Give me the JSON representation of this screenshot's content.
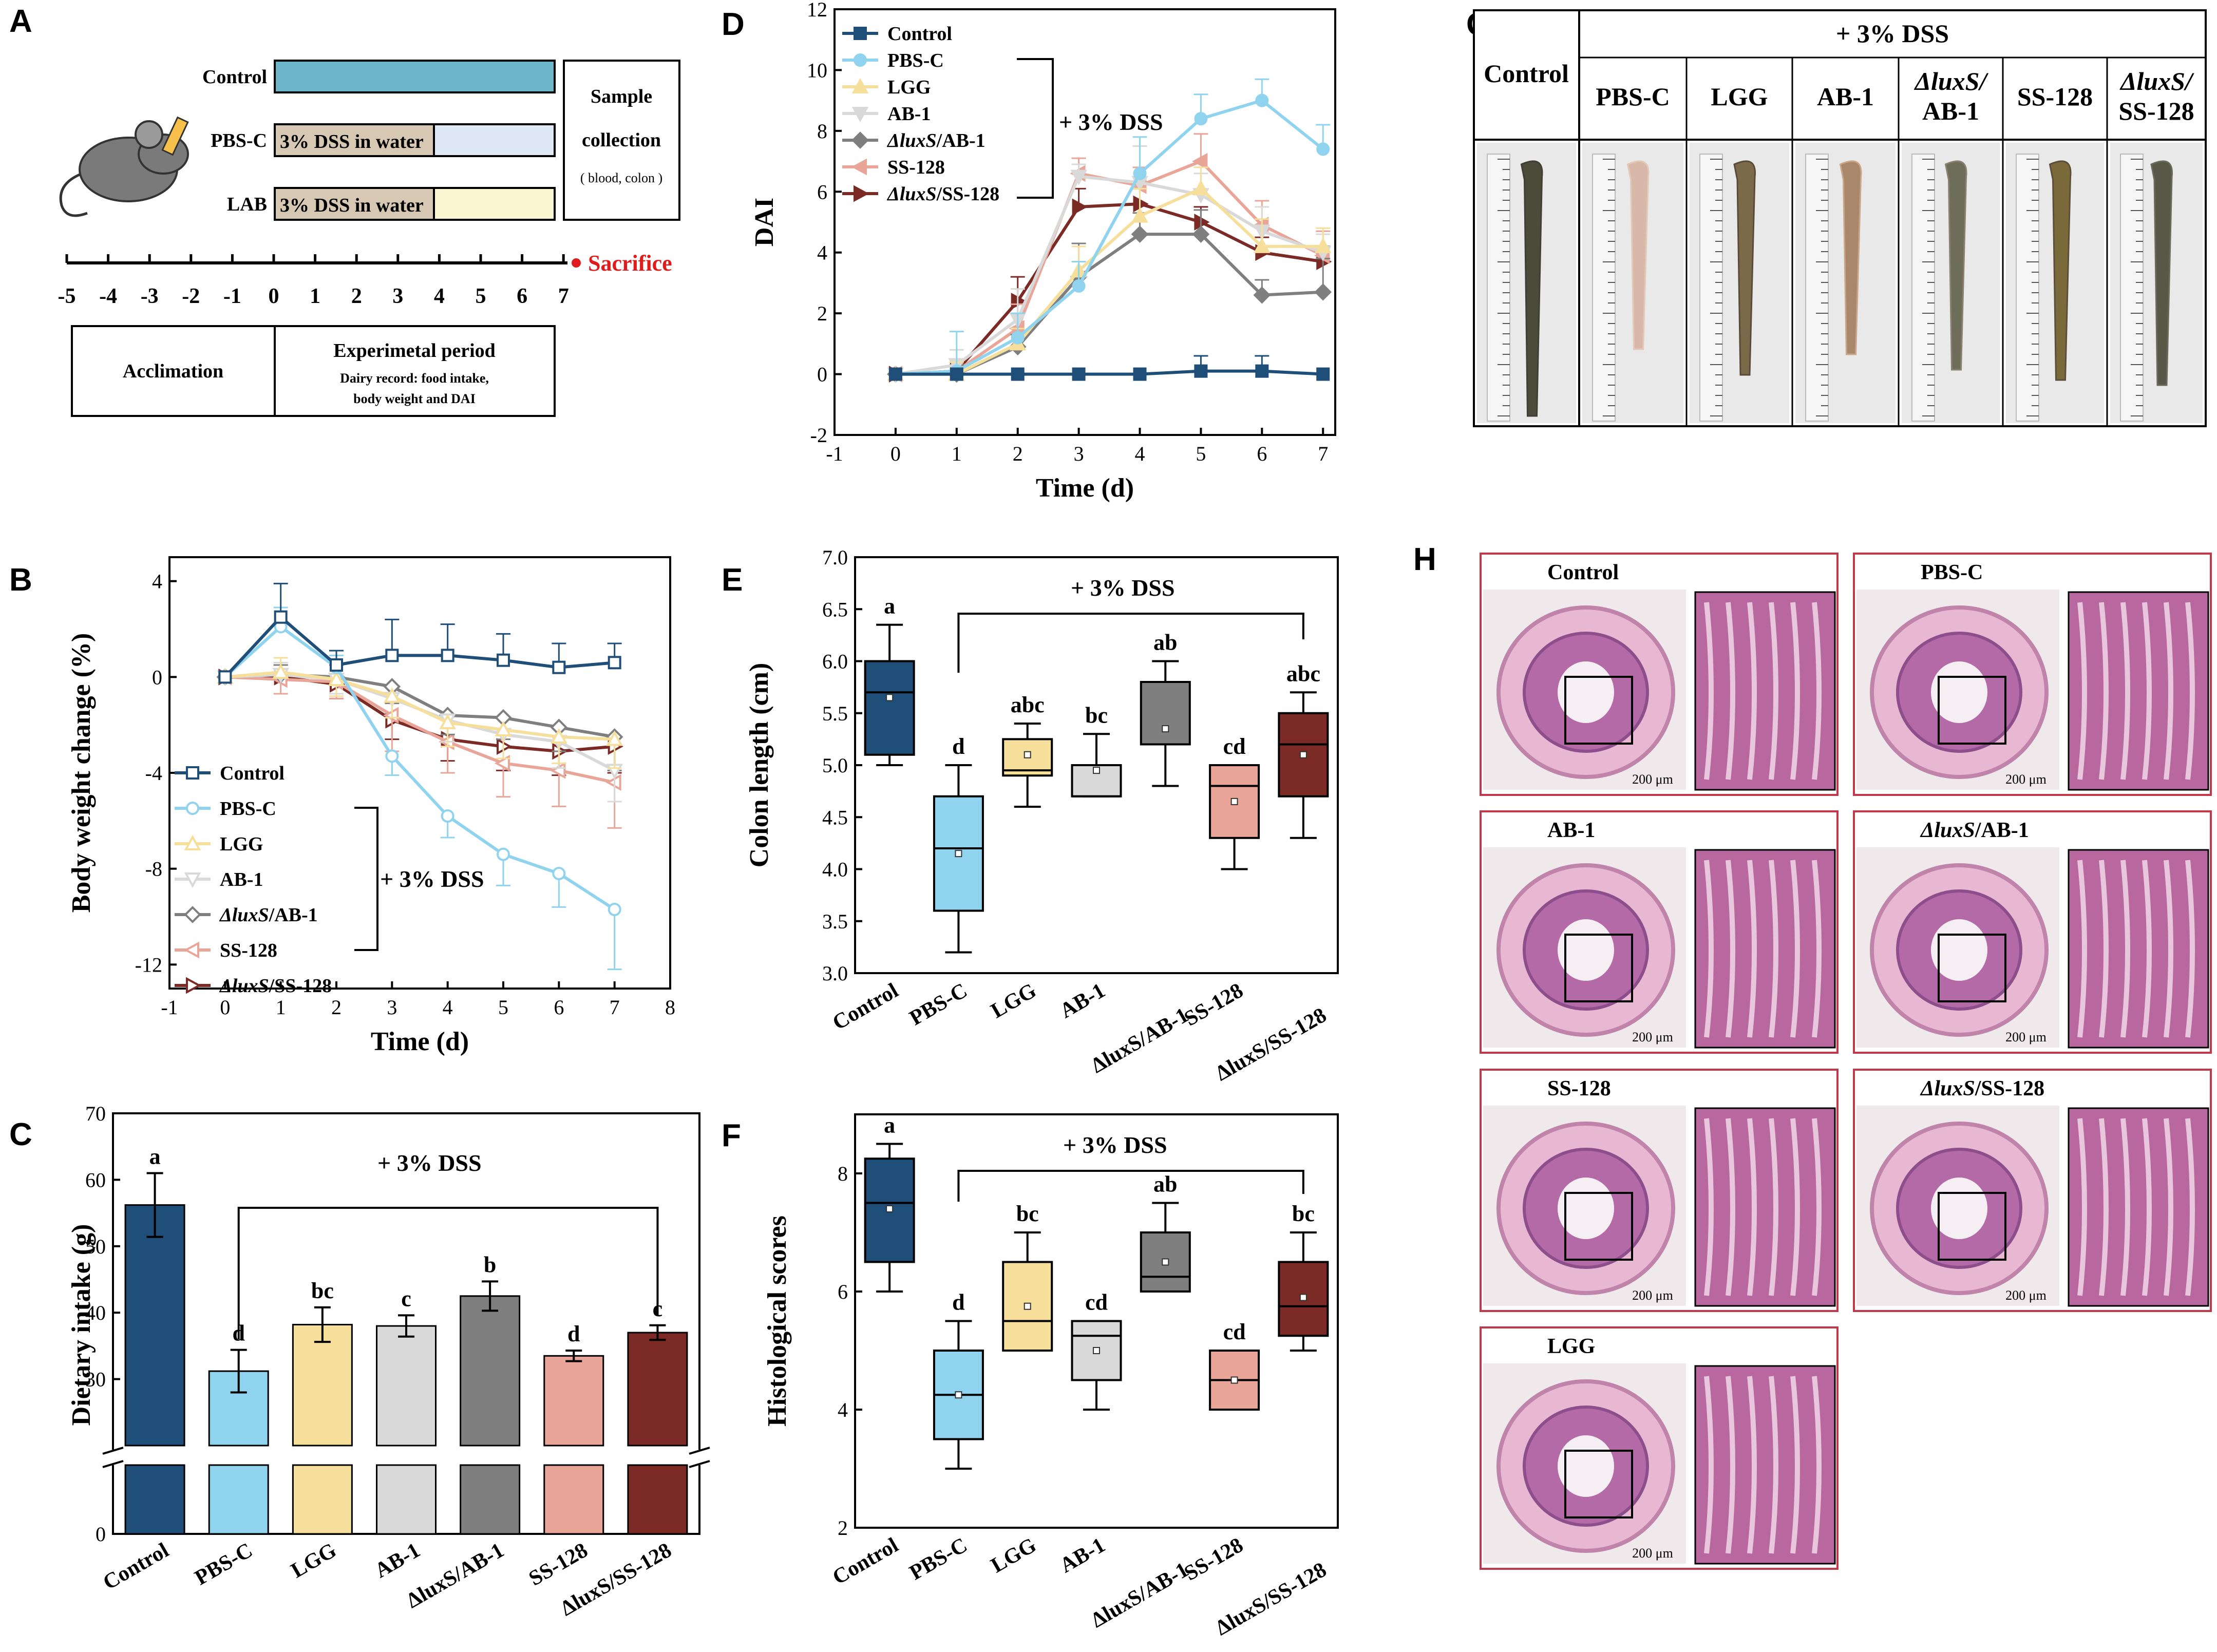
{
  "panels": {
    "A": {
      "letter": "A",
      "groups": [
        "Control",
        "PBS-C",
        "LAB"
      ],
      "bar_text": "3% DSS in water",
      "sample_box": [
        "Sample",
        "collection",
        "( blood, colon )"
      ],
      "sacrifice": "Sacrifice",
      "days": [
        "-5",
        "-4",
        "-3",
        "-2",
        "-1",
        "0",
        "1",
        "2",
        "3",
        "4",
        "5",
        "6",
        "7"
      ],
      "acclimation": "Acclimation",
      "experimental": "Experimetal period",
      "record_line1": "Dairy record: food intake,",
      "record_line2": "body weight and DAI",
      "colors": {
        "control_bar": "#6bb6c8",
        "pbs_bar": "#dfe9f5",
        "lab_bar": "#fbf6d2",
        "dss_part": "#d7c8b4"
      }
    },
    "G": {
      "letter": "G",
      "control": "Control",
      "dss_header": "+ 3% DSS",
      "columns": [
        "PBS-C",
        "LGG",
        "AB-1",
        "ΔluxS/\nAB-1",
        "SS-128",
        "ΔluxS/\nSS-128"
      ]
    },
    "H": {
      "letter": "H",
      "sections": [
        "Control",
        "PBS-C",
        "AB-1",
        "ΔluxS/AB-1",
        "SS-128",
        "ΔluxS/SS-128",
        "LGG"
      ],
      "scale": "200 μm",
      "border_color": "#c0394b"
    }
  },
  "series_colors": {
    "Control": "#1f4e79",
    "PBS-C": "#8fd3ee",
    "LGG": "#f5df9a",
    "AB-1": "#d9d9d9",
    "ΔluxS/AB-1": "#7f7f7f",
    "SS-128": "#e8a598",
    "ΔluxS/SS-128": "#7b2a26"
  },
  "chart_data": [
    {
      "id": "B",
      "letter": "B",
      "type": "line",
      "xlabel": "Time (d)",
      "ylabel": "Body weight change (%)",
      "xlim": [
        -1,
        8
      ],
      "ylim": [
        -13,
        5
      ],
      "xticks": [
        -1,
        0,
        1,
        2,
        3,
        4,
        5,
        6,
        7,
        8
      ],
      "yticks": [
        4,
        0,
        -4,
        -8,
        -12
      ],
      "dss_label": "+ 3% DSS",
      "x": [
        0,
        1,
        2,
        3,
        4,
        5,
        6,
        7
      ],
      "series": [
        {
          "name": "Control",
          "values": [
            0,
            2.5,
            0.5,
            0.9,
            0.9,
            0.7,
            0.4,
            0.6
          ],
          "err": [
            0,
            1.4,
            0.6,
            1.5,
            1.3,
            1.1,
            1.0,
            0.8
          ]
        },
        {
          "name": "PBS-C",
          "values": [
            0,
            2.1,
            0.4,
            -3.3,
            -5.8,
            -7.4,
            -8.2,
            -9.7
          ],
          "err": [
            0,
            0.8,
            0.5,
            0.8,
            0.9,
            1.3,
            1.4,
            2.5
          ]
        },
        {
          "name": "LGG",
          "values": [
            0,
            0.2,
            -0.1,
            -0.8,
            -1.9,
            -2.2,
            -2.5,
            -2.6
          ],
          "err": [
            0,
            0.6,
            0.7,
            0.9,
            1.0,
            1.2,
            1.1,
            1.2
          ]
        },
        {
          "name": "AB-1",
          "values": [
            0,
            0.1,
            -0.1,
            -0.9,
            -1.8,
            -2.4,
            -2.7,
            -3.9
          ],
          "err": [
            0,
            0.5,
            0.6,
            0.8,
            0.9,
            1.0,
            1.1,
            1.3
          ]
        },
        {
          "name": "ΔluxS/AB-1",
          "values": [
            0,
            0.1,
            0.0,
            -0.4,
            -1.6,
            -1.7,
            -2.1,
            -2.5
          ],
          "err": [
            0,
            0.4,
            0.5,
            0.7,
            0.8,
            0.9,
            1.0,
            1.4
          ]
        },
        {
          "name": "SS-128",
          "values": [
            0,
            -0.1,
            -0.2,
            -1.6,
            -2.7,
            -3.6,
            -3.9,
            -4.4
          ],
          "err": [
            0,
            0.6,
            0.7,
            1.5,
            1.3,
            1.4,
            1.5,
            1.9
          ]
        },
        {
          "name": "ΔluxS/SS-128",
          "values": [
            0,
            0.0,
            -0.3,
            -1.8,
            -2.6,
            -2.9,
            -3.1,
            -2.9
          ],
          "err": [
            0,
            0.5,
            0.6,
            0.8,
            0.9,
            1.0,
            1.0,
            1.1
          ]
        }
      ]
    },
    {
      "id": "C",
      "letter": "C",
      "type": "bar",
      "ylabel": "Dietary intake (g)",
      "ylim": [
        20,
        70
      ],
      "yticks": [
        30,
        40,
        50,
        60,
        70
      ],
      "axis_zero": "0",
      "dss_label": "+ 3% DSS",
      "categories": [
        "Control",
        "PBS-C",
        "LGG",
        "AB-1",
        "ΔluxS/AB-1",
        "SS-128",
        "ΔluxS/SS-128"
      ],
      "category_labels": [
        "Control",
        "PBS-C",
        "LGG",
        "AB-1",
        "ΔluxS/AB-1",
        "SS-128",
        "ΔluxS/SS-128"
      ],
      "values": [
        56.2,
        31.2,
        38.2,
        38.0,
        42.5,
        33.5,
        37.0
      ],
      "err": [
        4.8,
        3.2,
        2.6,
        1.6,
        2.2,
        0.8,
        1.1
      ],
      "letters": [
        "a",
        "d",
        "bc",
        "c",
        "b",
        "d",
        "c"
      ]
    },
    {
      "id": "D",
      "letter": "D",
      "type": "line",
      "xlabel": "Time (d)",
      "ylabel": "DAI",
      "xlim": [
        -1,
        7.2
      ],
      "ylim": [
        -2,
        12
      ],
      "xticks": [
        -1,
        0,
        1,
        2,
        3,
        4,
        5,
        6,
        7
      ],
      "yticks": [
        -2,
        0,
        2,
        4,
        6,
        8,
        10,
        12
      ],
      "dss_label": "+ 3% DSS",
      "x": [
        0,
        1,
        2,
        3,
        4,
        5,
        6,
        7
      ],
      "series": [
        {
          "name": "Control",
          "values": [
            0,
            0,
            0,
            0,
            0,
            0.1,
            0.1,
            0
          ],
          "err": [
            0,
            0,
            0,
            0,
            0,
            0.5,
            0.5,
            0
          ]
        },
        {
          "name": "PBS-C",
          "values": [
            0,
            0.1,
            1.2,
            2.9,
            6.6,
            8.4,
            9.0,
            7.4
          ],
          "err": [
            0,
            1.3,
            0.8,
            0.8,
            1.2,
            0.8,
            0.7,
            0.8
          ]
        },
        {
          "name": "LGG",
          "values": [
            0,
            0,
            1.0,
            3.4,
            5.2,
            6.1,
            4.2,
            4.2
          ],
          "err": [
            0,
            0.4,
            0.5,
            0.8,
            0.9,
            0.7,
            0.9,
            0.6
          ]
        },
        {
          "name": "AB-1",
          "values": [
            0,
            0.3,
            1.8,
            6.5,
            6.3,
            5.9,
            4.7,
            4.0
          ],
          "err": [
            0,
            0.5,
            1.0,
            0.4,
            1.2,
            0.7,
            0.8,
            0.6
          ]
        },
        {
          "name": "ΔluxS/AB-1",
          "values": [
            0,
            0,
            0.9,
            3.2,
            4.6,
            4.6,
            2.6,
            2.7
          ],
          "err": [
            0,
            0.3,
            0.4,
            1.1,
            0.7,
            0.8,
            0.5,
            1.1
          ]
        },
        {
          "name": "SS-128",
          "values": [
            0,
            0.1,
            1.5,
            6.6,
            6.2,
            7.0,
            4.9,
            3.9
          ],
          "err": [
            0,
            0.4,
            0.8,
            0.5,
            0.6,
            0.9,
            0.8,
            0.8
          ]
        },
        {
          "name": "ΔluxS/SS-128",
          "values": [
            0,
            0.1,
            2.4,
            5.5,
            5.6,
            5.0,
            4.0,
            3.7
          ],
          "err": [
            0,
            0.4,
            0.8,
            0.6,
            0.5,
            0.5,
            0.5,
            0.5
          ]
        }
      ]
    },
    {
      "id": "E",
      "letter": "E",
      "type": "box",
      "ylabel": "Colon length (cm)",
      "ylim": [
        3.0,
        7.0
      ],
      "yticks": [
        3.0,
        3.5,
        4.0,
        4.5,
        5.0,
        5.5,
        6.0,
        6.5,
        7.0
      ],
      "dss_label": "+ 3% DSS",
      "categories": [
        "Control",
        "PBS-C",
        "LGG",
        "AB-1",
        "ΔluxS/AB-1",
        "SS-128",
        "ΔluxS/SS-128"
      ],
      "category_labels": [
        "Control",
        "PBS-C",
        "LGG",
        "AB-1",
        "AB-1",
        "SS-128",
        "SS-128"
      ],
      "category_prefix": [
        "",
        "",
        "",
        "",
        "ΔluxS/",
        "",
        "ΔluxS/"
      ],
      "boxes": [
        {
          "min": 5.0,
          "q1": 5.1,
          "median": 5.7,
          "q3": 6.0,
          "max": 6.35,
          "mean": 5.65
        },
        {
          "min": 3.2,
          "q1": 3.6,
          "median": 4.2,
          "q3": 4.7,
          "max": 5.0,
          "mean": 4.15
        },
        {
          "min": 4.6,
          "q1": 4.9,
          "median": 4.95,
          "q3": 5.25,
          "max": 5.4,
          "mean": 5.1
        },
        {
          "min": 4.7,
          "q1": 4.7,
          "median": 4.7,
          "q3": 5.0,
          "max": 5.3,
          "mean": 4.95
        },
        {
          "min": 4.8,
          "q1": 5.2,
          "median": 5.2,
          "q3": 5.8,
          "max": 6.0,
          "mean": 5.35
        },
        {
          "min": 4.0,
          "q1": 4.3,
          "median": 4.8,
          "q3": 5.0,
          "max": 5.0,
          "mean": 4.65
        },
        {
          "min": 4.3,
          "q1": 4.7,
          "median": 5.2,
          "q3": 5.5,
          "max": 5.7,
          "mean": 5.1
        }
      ],
      "letters": [
        "a",
        "d",
        "abc",
        "bc",
        "ab",
        "cd",
        "abc"
      ]
    },
    {
      "id": "F",
      "letter": "F",
      "type": "box",
      "ylabel": "Histological scores",
      "ylim": [
        2,
        9
      ],
      "yticks": [
        2,
        4,
        6,
        8
      ],
      "dss_label": "+ 3% DSS",
      "categories": [
        "Control",
        "PBS-C",
        "LGG",
        "AB-1",
        "ΔluxS/AB-1",
        "SS-128",
        "ΔluxS/SS-128"
      ],
      "category_labels": [
        "Control",
        "PBS-C",
        "LGG",
        "AB-1",
        "AB-1",
        "SS-128",
        "SS-128"
      ],
      "category_prefix": [
        "",
        "",
        "",
        "",
        "ΔluxS/",
        "",
        "ΔluxS/"
      ],
      "boxes": [
        {
          "min": 6.0,
          "q1": 6.5,
          "median": 7.5,
          "q3": 8.25,
          "max": 8.5,
          "mean": 7.4
        },
        {
          "min": 3.0,
          "q1": 3.5,
          "median": 4.25,
          "q3": 5.0,
          "max": 5.5,
          "mean": 4.25
        },
        {
          "min": 5.0,
          "q1": 5.0,
          "median": 5.5,
          "q3": 6.5,
          "max": 7.0,
          "mean": 5.75
        },
        {
          "min": 4.0,
          "q1": 4.5,
          "median": 5.25,
          "q3": 5.5,
          "max": 5.5,
          "mean": 5.0
        },
        {
          "min": 6.0,
          "q1": 6.0,
          "median": 6.25,
          "q3": 7.0,
          "max": 7.5,
          "mean": 6.5
        },
        {
          "min": 4.0,
          "q1": 4.0,
          "median": 4.5,
          "q3": 5.0,
          "max": 5.0,
          "mean": 4.5
        },
        {
          "min": 5.0,
          "q1": 5.25,
          "median": 5.75,
          "q3": 6.5,
          "max": 7.0,
          "mean": 5.9
        }
      ],
      "letters": [
        "a",
        "d",
        "bc",
        "cd",
        "ab",
        "cd",
        "bc"
      ]
    }
  ]
}
